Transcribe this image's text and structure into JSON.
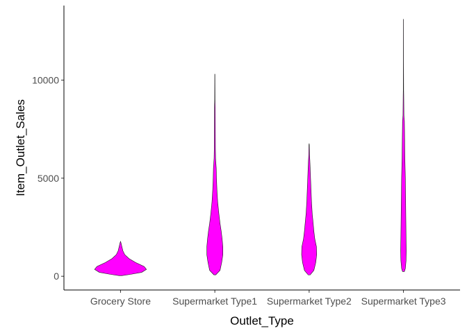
{
  "chart_data": {
    "type": "violin",
    "xlabel": "Outlet_Type",
    "ylabel": "Item_Outlet_Sales",
    "categories": [
      "Grocery Store",
      "Supermarket Type1",
      "Supermarket Type2",
      "Supermarket Type3"
    ],
    "y_ticks": [
      0,
      5000,
      10000
    ],
    "y_tick_labels": [
      "0",
      "5000",
      "10000"
    ],
    "ylim": [
      -700,
      13800
    ],
    "grid": false,
    "fill_color": "#FF00FF",
    "outline_color": "#1a1a1a",
    "series": [
      {
        "category": "Grocery Store",
        "profile": [
          [
            33,
            0.03
          ],
          [
            100,
            0.22
          ],
          [
            200,
            0.45
          ],
          [
            350,
            0.55
          ],
          [
            500,
            0.5
          ],
          [
            700,
            0.32
          ],
          [
            900,
            0.18
          ],
          [
            1100,
            0.09
          ],
          [
            1300,
            0.05
          ],
          [
            1500,
            0.03
          ],
          [
            1700,
            0.01
          ],
          [
            1775,
            0.0
          ]
        ]
      },
      {
        "category": "Supermarket Type1",
        "profile": [
          [
            73,
            0.02
          ],
          [
            300,
            0.11
          ],
          [
            700,
            0.145
          ],
          [
            1100,
            0.17
          ],
          [
            1500,
            0.17
          ],
          [
            1900,
            0.155
          ],
          [
            2300,
            0.135
          ],
          [
            2700,
            0.11
          ],
          [
            3200,
            0.085
          ],
          [
            3800,
            0.06
          ],
          [
            4400,
            0.045
          ],
          [
            5000,
            0.035
          ],
          [
            5500,
            0.03
          ],
          [
            6000,
            0.016
          ],
          [
            6500,
            0.012
          ],
          [
            7500,
            0.01
          ],
          [
            8600,
            0.008
          ],
          [
            9000,
            0.004
          ],
          [
            10300,
            0.002
          ]
        ]
      },
      {
        "category": "Supermarket Type2",
        "profile": [
          [
            69,
            0.02
          ],
          [
            300,
            0.1
          ],
          [
            700,
            0.14
          ],
          [
            1100,
            0.16
          ],
          [
            1500,
            0.155
          ],
          [
            1900,
            0.12
          ],
          [
            2300,
            0.1
          ],
          [
            2700,
            0.085
          ],
          [
            3200,
            0.065
          ],
          [
            3800,
            0.05
          ],
          [
            4400,
            0.04
          ],
          [
            5000,
            0.03
          ],
          [
            5500,
            0.022
          ],
          [
            5900,
            0.015
          ],
          [
            6200,
            0.008
          ],
          [
            6700,
            0.004
          ],
          [
            6770,
            0.0
          ]
        ]
      },
      {
        "category": "Supermarket Type3",
        "profile": [
          [
            241,
            0.02
          ],
          [
            400,
            0.04
          ],
          [
            800,
            0.055
          ],
          [
            1300,
            0.06
          ],
          [
            2000,
            0.055
          ],
          [
            3000,
            0.05
          ],
          [
            4000,
            0.045
          ],
          [
            5000,
            0.04
          ],
          [
            6000,
            0.03
          ],
          [
            7000,
            0.025
          ],
          [
            7900,
            0.02
          ],
          [
            8200,
            0.01
          ],
          [
            9200,
            0.006
          ],
          [
            9500,
            0.004
          ],
          [
            11000,
            0.002
          ],
          [
            13100,
            0.001
          ]
        ]
      }
    ]
  }
}
